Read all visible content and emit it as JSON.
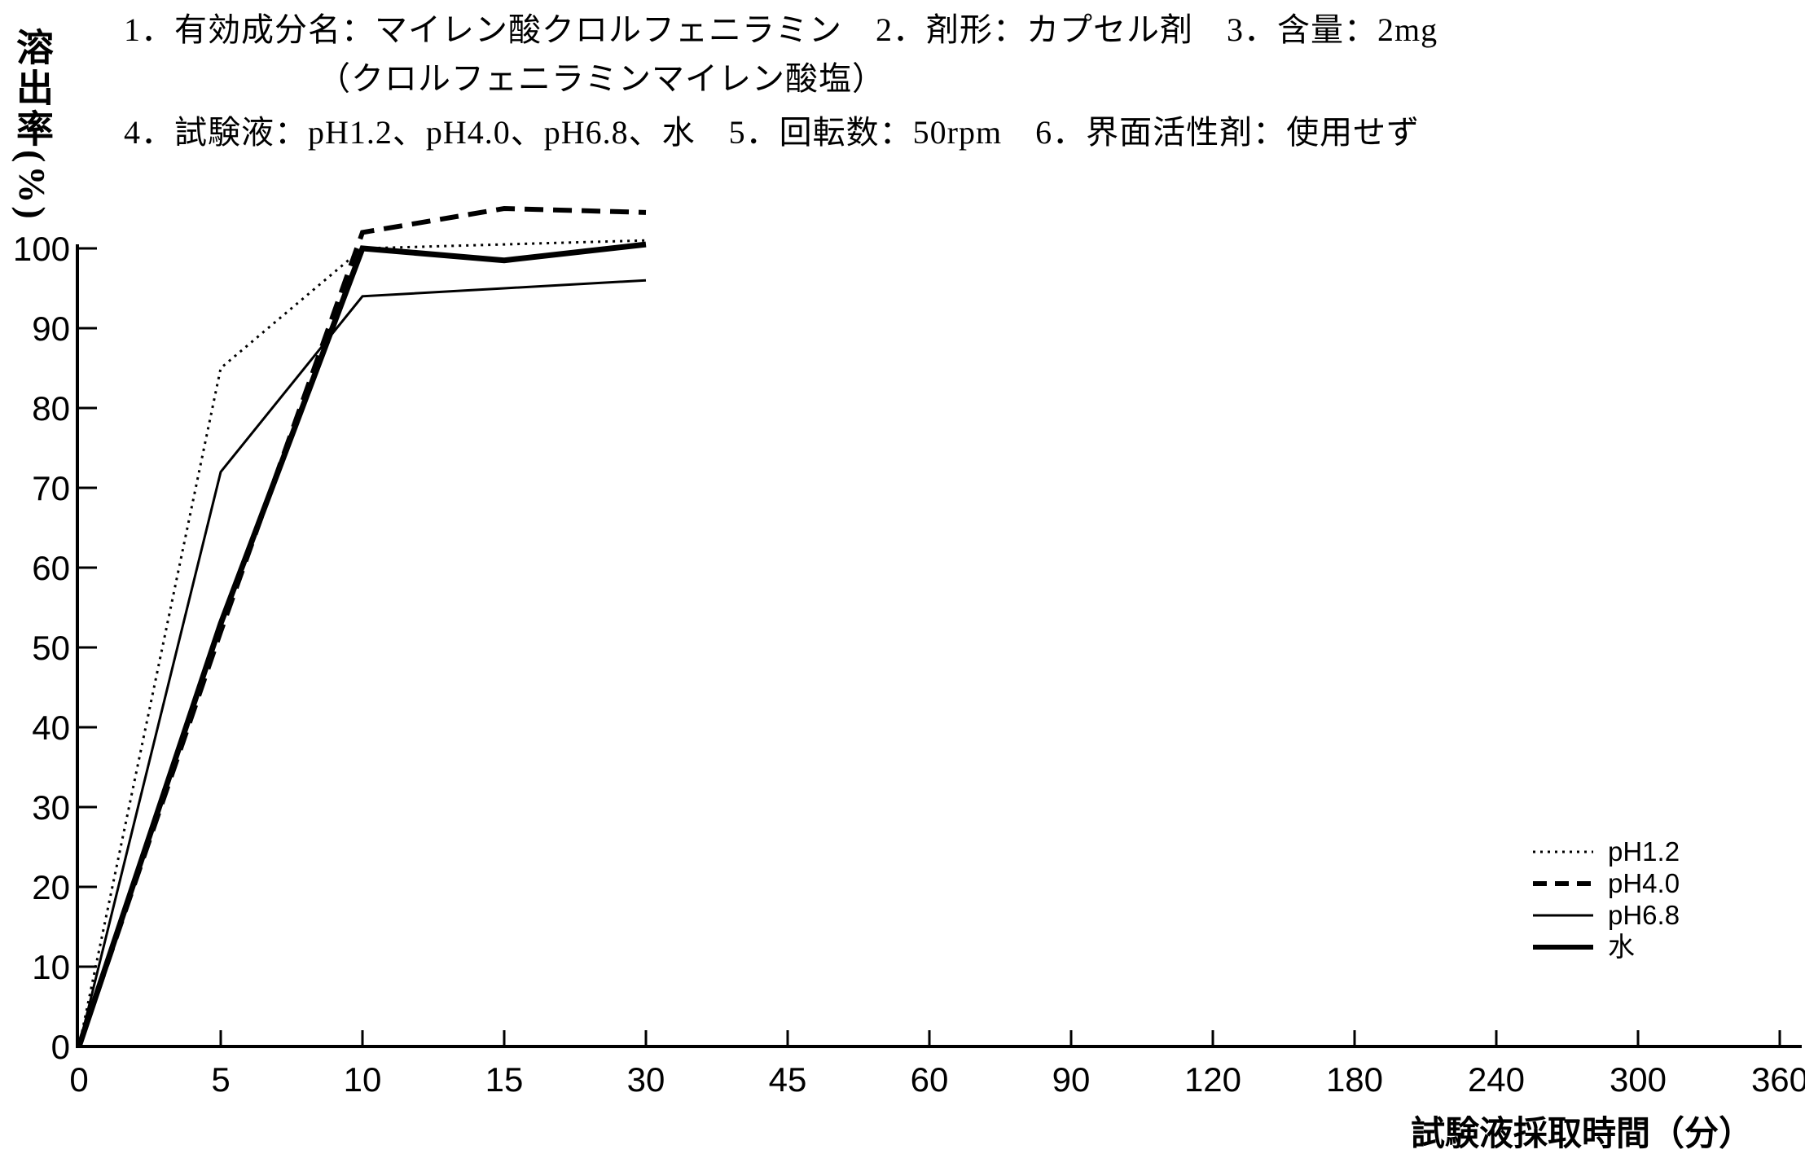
{
  "header": {
    "line1": "1．有効成分名：マイレン酸クロルフェニラミン　2．剤形：カプセル剤　3．含量：2mg",
    "line2": "（クロルフェニラミンマイレン酸塩）",
    "line3": "4．試験液：pH1.2、pH4.0、pH6.8、水　5．回転数：50rpm　6．界面活性剤：使用せず"
  },
  "chart_data": {
    "type": "line",
    "title": "",
    "xlabel": "試験液採取時間（分）",
    "ylabel": "溶出率(%)",
    "x_tick_labels": [
      "0",
      "5",
      "10",
      "15",
      "30",
      "45",
      "60",
      "90",
      "120",
      "180",
      "240",
      "300",
      "360"
    ],
    "x_axis_note": "category axis: ticks equally spaced although time values are non-linear",
    "y_ticks": [
      0,
      10,
      20,
      30,
      40,
      50,
      60,
      70,
      80,
      90,
      100
    ],
    "ylim": [
      0,
      100
    ],
    "grid": false,
    "legend_position": "right-middle",
    "colors": {
      "line": "#000000",
      "background": "#ffffff"
    },
    "x": [
      0,
      5,
      10,
      15,
      30
    ],
    "series": [
      {
        "name": "pH1.2",
        "style": "dotted-fine",
        "values": [
          0,
          85,
          100,
          100.5,
          101
        ]
      },
      {
        "name": "pH4.0",
        "style": "dashed-bold",
        "values": [
          0,
          52,
          102,
          105,
          104.5
        ]
      },
      {
        "name": "pH6.8",
        "style": "solid-thin",
        "values": [
          0,
          72,
          94,
          95,
          96
        ]
      },
      {
        "name": "水",
        "style": "solid-thick",
        "values": [
          0,
          53,
          100,
          98.5,
          100.5
        ]
      }
    ]
  }
}
